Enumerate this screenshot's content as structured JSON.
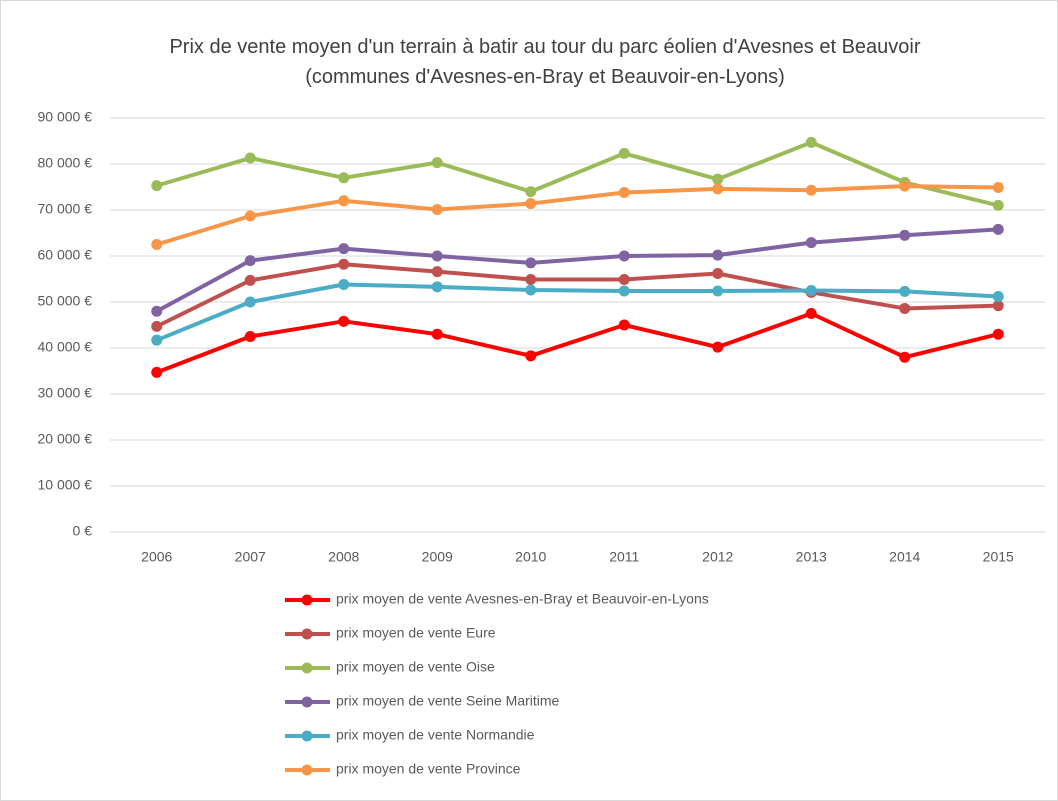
{
  "chart_data": {
    "type": "line",
    "title": "Prix de vente moyen d'un terrain à batir au tour du parc éolien d'Avesnes et Beauvoir (communes d'Avesnes-en-Bray et Beauvoir-en-Lyons)",
    "categories": [
      "2006",
      "2007",
      "2008",
      "2009",
      "2010",
      "2011",
      "2012",
      "2013",
      "2014",
      "2015"
    ],
    "series": [
      {
        "name": "prix moyen de vente Avesnes-en-Bray et Beauvoir-en-Lyons",
        "color": "#ff0000",
        "values": [
          34700,
          42500,
          45800,
          43000,
          38300,
          45000,
          40200,
          47500,
          38000,
          43000
        ]
      },
      {
        "name": "prix moyen de vente Eure",
        "color": "#c0504d",
        "values": [
          44700,
          54700,
          58200,
          56600,
          54900,
          54900,
          56200,
          52100,
          48600,
          49200
        ]
      },
      {
        "name": "prix moyen de vente Oise",
        "color": "#9bbb59",
        "values": [
          75300,
          81300,
          77000,
          80300,
          74000,
          82300,
          76700,
          84700,
          76000,
          71000
        ]
      },
      {
        "name": "prix moyen de vente Seine Maritime",
        "color": "#8064a2",
        "values": [
          48000,
          59000,
          61600,
          60000,
          58500,
          60000,
          60200,
          62900,
          64500,
          65800
        ]
      },
      {
        "name": "prix moyen de vente Normandie",
        "color": "#4bacc6",
        "values": [
          41700,
          50000,
          53800,
          53300,
          52600,
          52400,
          52400,
          52500,
          52300,
          51200
        ]
      },
      {
        "name": "prix moyen de vente Province",
        "color": "#f79646",
        "values": [
          62500,
          68700,
          72000,
          70100,
          71400,
          73800,
          74600,
          74300,
          75200,
          74900
        ]
      }
    ],
    "ylim": [
      0,
      90000
    ],
    "yticks": [
      {
        "value": 0,
        "label": "0 €"
      },
      {
        "value": 10000,
        "label": "10 000 €"
      },
      {
        "value": 20000,
        "label": "20 000 €"
      },
      {
        "value": 30000,
        "label": "30 000 €"
      },
      {
        "value": 40000,
        "label": "40 000 €"
      },
      {
        "value": 50000,
        "label": "50 000 €"
      },
      {
        "value": 60000,
        "label": "60 000 €"
      },
      {
        "value": 70000,
        "label": "70 000 €"
      },
      {
        "value": 80000,
        "label": "80 000 €"
      },
      {
        "value": 90000,
        "label": "90 000 €"
      }
    ],
    "grid": true,
    "legend": "bottom"
  }
}
